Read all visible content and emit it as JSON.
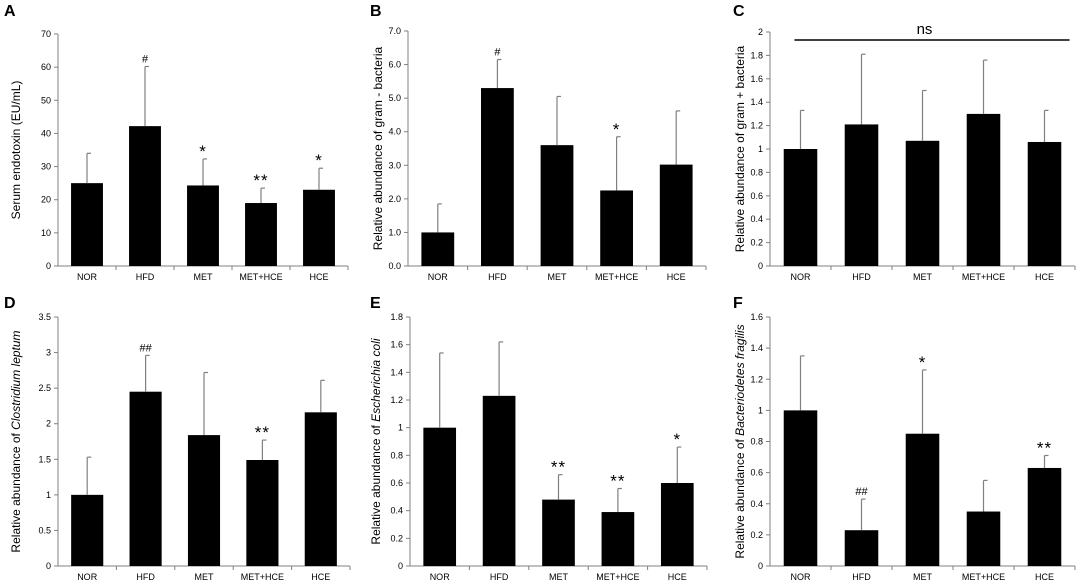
{
  "figure": {
    "colors": {
      "bar": "#000000",
      "axis": "#808080",
      "text": "#000000"
    }
  },
  "chart_data": [
    {
      "panel": "A",
      "type": "bar",
      "categories": [
        "NOR",
        "HFD",
        "MET",
        "MET+HCE",
        "HCE"
      ],
      "values": [
        25,
        42.2,
        24.3,
        19,
        23
      ],
      "errors": [
        9,
        18,
        8,
        4.5,
        6.5
      ],
      "ylabel": "Serum endotoxin (EU/mL)",
      "ylabel_italic": "",
      "ylabel_suffix": "",
      "ylim": [
        0,
        70
      ],
      "yticks": [
        "0",
        "10",
        "20",
        "30",
        "40",
        "50",
        "60",
        "70"
      ],
      "annotations": [
        "",
        "#",
        "*",
        "**",
        "*"
      ]
    },
    {
      "panel": "B",
      "type": "bar",
      "categories": [
        "NOR",
        "HFD",
        "MET",
        "MET+HCE",
        "HCE"
      ],
      "values": [
        1.0,
        5.3,
        3.6,
        2.25,
        3.02
      ],
      "errors": [
        0.85,
        0.85,
        1.45,
        1.6,
        1.6
      ],
      "ylabel": "Relative abundance of gram - bacteria",
      "ylabel_italic": "",
      "ylabel_suffix": "",
      "ylim": [
        0,
        7
      ],
      "yticks": [
        "0.0",
        "1.0",
        "2.0",
        "3.0",
        "4.0",
        "5.0",
        "6.0",
        "7.0"
      ],
      "annotations": [
        "",
        "#",
        "",
        "*",
        ""
      ]
    },
    {
      "panel": "C",
      "type": "bar",
      "categories": [
        "NOR",
        "HFD",
        "MET",
        "MET+HCE",
        "HCE"
      ],
      "values": [
        1.0,
        1.21,
        1.07,
        1.3,
        1.06
      ],
      "errors": [
        0.33,
        0.6,
        0.43,
        0.46,
        0.27
      ],
      "ylabel": "Relative abundance of gram + bacteria",
      "ylabel_italic": "",
      "ylabel_suffix": "",
      "ylim": [
        0,
        2
      ],
      "yticks": [
        "0",
        "0.2",
        "0.4",
        "0.6",
        "0.8",
        "1",
        "1.2",
        "1.4",
        "1.6",
        "1.8",
        "2"
      ],
      "annotations": [
        "",
        "",
        "",
        "",
        ""
      ],
      "overall_label": "ns"
    },
    {
      "panel": "D",
      "type": "bar",
      "categories": [
        "NOR",
        "HFD",
        "MET",
        "MET+HCE",
        "HCE"
      ],
      "values": [
        1.0,
        2.45,
        1.84,
        1.49,
        2.16
      ],
      "errors": [
        0.53,
        0.51,
        0.88,
        0.28,
        0.45
      ],
      "ylabel": "Relative abundance of ",
      "ylabel_italic": "Clostridium leptum",
      "ylabel_suffix": "",
      "ylim": [
        0,
        3.5
      ],
      "yticks": [
        "0",
        "0.5",
        "1",
        "1.5",
        "2",
        "2.5",
        "3",
        "3.5"
      ],
      "annotations": [
        "",
        "##",
        "",
        "**",
        ""
      ]
    },
    {
      "panel": "E",
      "type": "bar",
      "categories": [
        "NOR",
        "HFD",
        "MET",
        "MET+HCE",
        "HCE"
      ],
      "values": [
        1.0,
        1.23,
        0.48,
        0.39,
        0.6
      ],
      "errors": [
        0.54,
        0.39,
        0.18,
        0.17,
        0.26
      ],
      "ylabel": "Relative abundance of ",
      "ylabel_italic": "Escherichia coli",
      "ylabel_suffix": "",
      "ylim": [
        0,
        1.8
      ],
      "yticks": [
        "0",
        "0.2",
        "0.4",
        "0.6",
        "0.8",
        "1",
        "1.2",
        "1.4",
        "1.6",
        "1.8"
      ],
      "annotations": [
        "",
        "",
        "**",
        "**",
        "*"
      ]
    },
    {
      "panel": "F",
      "type": "bar",
      "categories": [
        "NOR",
        "HFD",
        "MET",
        "MET+HCE",
        "HCE"
      ],
      "values": [
        1.0,
        0.23,
        0.85,
        0.35,
        0.63
      ],
      "errors": [
        0.35,
        0.2,
        0.41,
        0.2,
        0.08
      ],
      "ylabel": "Relative abundance of ",
      "ylabel_italic": "Bacteriodetes fragilis",
      "ylabel_suffix": "",
      "ylim": [
        0,
        1.6
      ],
      "yticks": [
        "0",
        "0.2",
        "0.4",
        "0.6",
        "0.8",
        "1",
        "1.2",
        "1.4",
        "1.6"
      ],
      "annotations": [
        "",
        "##",
        "*",
        "",
        "**"
      ]
    }
  ]
}
